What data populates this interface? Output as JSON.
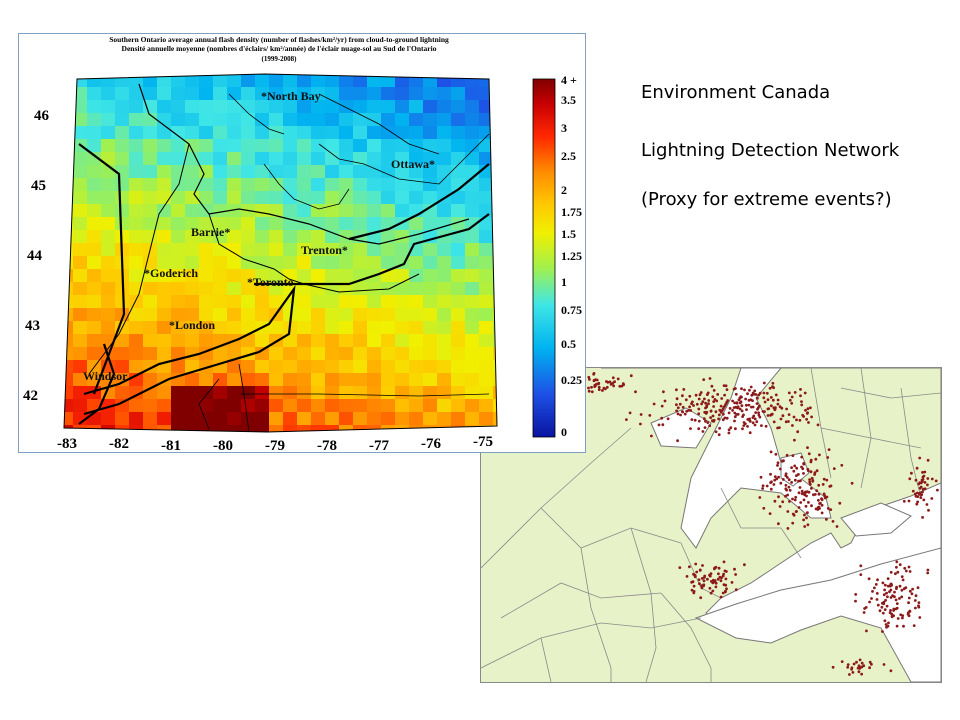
{
  "slide": {
    "lines": [
      "Environment Canada",
      "Lightning Detection Network",
      "(Proxy for extreme events?)"
    ]
  },
  "flash_map": {
    "title_en": "Southern Ontario average annual flash density (number of flashes/km²/yr) from cloud-to-ground lightning",
    "title_fr": "Densité annuelle moyenne (nombres d'éclairs/ km²/année) de l'éclair nuage-sol au Sud de l'Ontario",
    "period": "(1999-2008)",
    "lat_ticks": [
      "46",
      "45",
      "44",
      "43",
      "42"
    ],
    "lon_ticks": [
      "-83",
      "-82",
      "-81",
      "-80",
      "-79",
      "-78",
      "-77",
      "-76",
      "-75"
    ],
    "cities": [
      "*North Bay",
      "Ottawa*",
      "Barrie*",
      "Trenton*",
      "*Goderich",
      "*Toronto",
      "*London",
      "Windsor"
    ],
    "colorbar_labels": [
      "4 +",
      "3.5",
      "3",
      "2.5",
      "2",
      "1.75",
      "1.5",
      "1.25",
      "1",
      "0.75",
      "0.5",
      "0.25",
      "0"
    ],
    "colors": {
      "high": "#8b0000",
      "mid": "#ffff00",
      "low": "#1e28c8",
      "border": "#000000"
    }
  },
  "strike_map": {
    "land_color": "#e8f2c8",
    "water_color": "#ffffff",
    "strike_color": "#8b1a1a"
  }
}
